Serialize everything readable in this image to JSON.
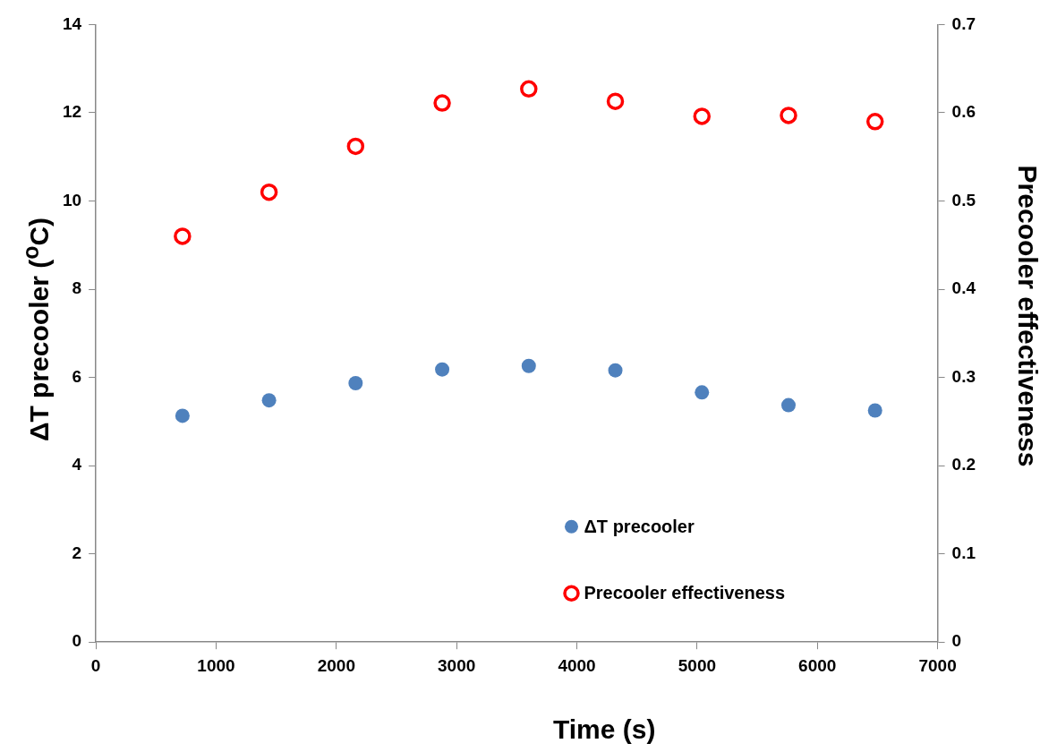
{
  "chart_data": {
    "type": "scatter",
    "xlabel": "Time (s)",
    "ylabel": "ΔT precooler ($^{o}$C)",
    "y2label": "Precooler effectiveness",
    "x": [
      720,
      1440,
      2160,
      2880,
      3600,
      4320,
      5040,
      5760,
      6480
    ],
    "series": [
      {
        "name": "ΔT precooler",
        "color": "#4f81bd",
        "values": [
          5.13,
          5.48,
          5.87,
          6.18,
          6.26,
          6.16,
          5.66,
          5.37,
          5.25
        ]
      },
      {
        "name": "Precooler effectiveness",
        "color": "#ff0000",
        "axis": "y2",
        "values": [
          0.46,
          0.51,
          0.562,
          0.611,
          0.627,
          0.613,
          0.596,
          0.597,
          0.59
        ]
      }
    ],
    "xlim": [
      0,
      7000
    ],
    "xticks": [
      0,
      1000,
      2000,
      3000,
      4000,
      5000,
      6000,
      7000
    ],
    "ylim": [
      0,
      14
    ],
    "yticks": [
      0,
      2,
      4,
      6,
      8,
      10,
      12,
      14
    ],
    "y2lim": [
      0,
      0.7
    ],
    "y2ticks": [
      0,
      0.1,
      0.2,
      0.3,
      0.4,
      0.5,
      0.6,
      0.7
    ],
    "grid": false,
    "legend": "bottom right",
    "marker": "circle"
  }
}
